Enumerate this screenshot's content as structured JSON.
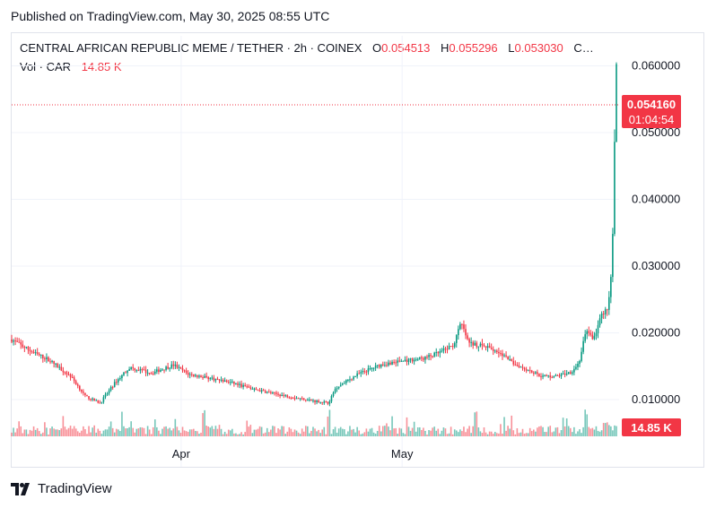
{
  "published": "Published on TradingView.com, May 30, 2025 08:55 UTC",
  "legend": {
    "symbol": "CENTRAL AFRICAN REPUBLIC MEME / TETHER · 2h · COINEX",
    "open_label": "O",
    "open_value": "0.054513",
    "high_label": "H",
    "high_value": "0.055296",
    "low_label": "L",
    "low_value": "0.053030",
    "close_trunc": "C…",
    "vol_label": "Vol · CAR",
    "vol_value": "14.85 K"
  },
  "price_badge": {
    "price": "0.054160",
    "countdown": "01:04:54"
  },
  "volume_badge": "14.85 K",
  "brand": "TradingView",
  "colors": {
    "up": "#089981",
    "down": "#f23645",
    "grid": "#f0f3fa",
    "text": "#131722"
  },
  "chart_data": {
    "type": "candlestick",
    "pair": "CENTRAL AFRICAN REPUBLIC MEME / TETHER",
    "interval": "2h",
    "exchange": "COINEX",
    "y_ticks": [
      "0.010000",
      "0.020000",
      "0.030000",
      "0.040000",
      "0.050000",
      "0.060000"
    ],
    "ylim": [
      0.0045,
      0.0645
    ],
    "x_ticks": [
      {
        "label": "Apr",
        "date": "2025-04-01"
      },
      {
        "label": "May",
        "date": "2025-05-01"
      }
    ],
    "x_range": [
      "2025-03-09",
      "2025-05-30"
    ],
    "last_price": 0.05416,
    "ohlc_last": {
      "open": 0.054513,
      "high": 0.055296,
      "low": 0.05303
    },
    "volume_last": "14.85 K",
    "close_path": [
      [
        "2025-03-09",
        0.019
      ],
      [
        "2025-03-12",
        0.017
      ],
      [
        "2025-03-14",
        0.016
      ],
      [
        "2025-03-17",
        0.0135
      ],
      [
        "2025-03-19",
        0.0105
      ],
      [
        "2025-03-21",
        0.0095
      ],
      [
        "2025-03-23",
        0.0125
      ],
      [
        "2025-03-25",
        0.0148
      ],
      [
        "2025-03-28",
        0.014
      ],
      [
        "2025-03-31",
        0.0152
      ],
      [
        "2025-04-02",
        0.0138
      ],
      [
        "2025-04-05",
        0.0132
      ],
      [
        "2025-04-08",
        0.0125
      ],
      [
        "2025-04-11",
        0.0115
      ],
      [
        "2025-04-14",
        0.0108
      ],
      [
        "2025-04-17",
        0.0102
      ],
      [
        "2025-04-19",
        0.0098
      ],
      [
        "2025-04-21",
        0.0095
      ],
      [
        "2025-04-22",
        0.0118
      ],
      [
        "2025-04-25",
        0.0138
      ],
      [
        "2025-04-28",
        0.0152
      ],
      [
        "2025-05-01",
        0.0158
      ],
      [
        "2025-05-04",
        0.0162
      ],
      [
        "2025-05-06",
        0.017
      ],
      [
        "2025-05-08",
        0.0182
      ],
      [
        "2025-05-09",
        0.0215
      ],
      [
        "2025-05-10",
        0.0185
      ],
      [
        "2025-05-12",
        0.018
      ],
      [
        "2025-05-14",
        0.0172
      ],
      [
        "2025-05-16",
        0.0155
      ],
      [
        "2025-05-18",
        0.0145
      ],
      [
        "2025-05-20",
        0.0135
      ],
      [
        "2025-05-22",
        0.0135
      ],
      [
        "2025-05-24",
        0.0142
      ],
      [
        "2025-05-25",
        0.0155
      ],
      [
        "2025-05-26",
        0.0205
      ],
      [
        "2025-05-27",
        0.019
      ],
      [
        "2025-05-28",
        0.0225
      ],
      [
        "2025-05-29",
        0.024
      ],
      [
        "2025-05-29T12",
        0.03
      ],
      [
        "2025-05-29T18",
        0.045
      ],
      [
        "2025-05-30T02",
        0.0595
      ],
      [
        "2025-05-30T08",
        0.05416
      ]
    ],
    "notable_volume_spikes": [
      "2025-03-24",
      "2025-04-04",
      "2025-04-21",
      "2025-05-11",
      "2025-05-26"
    ]
  }
}
